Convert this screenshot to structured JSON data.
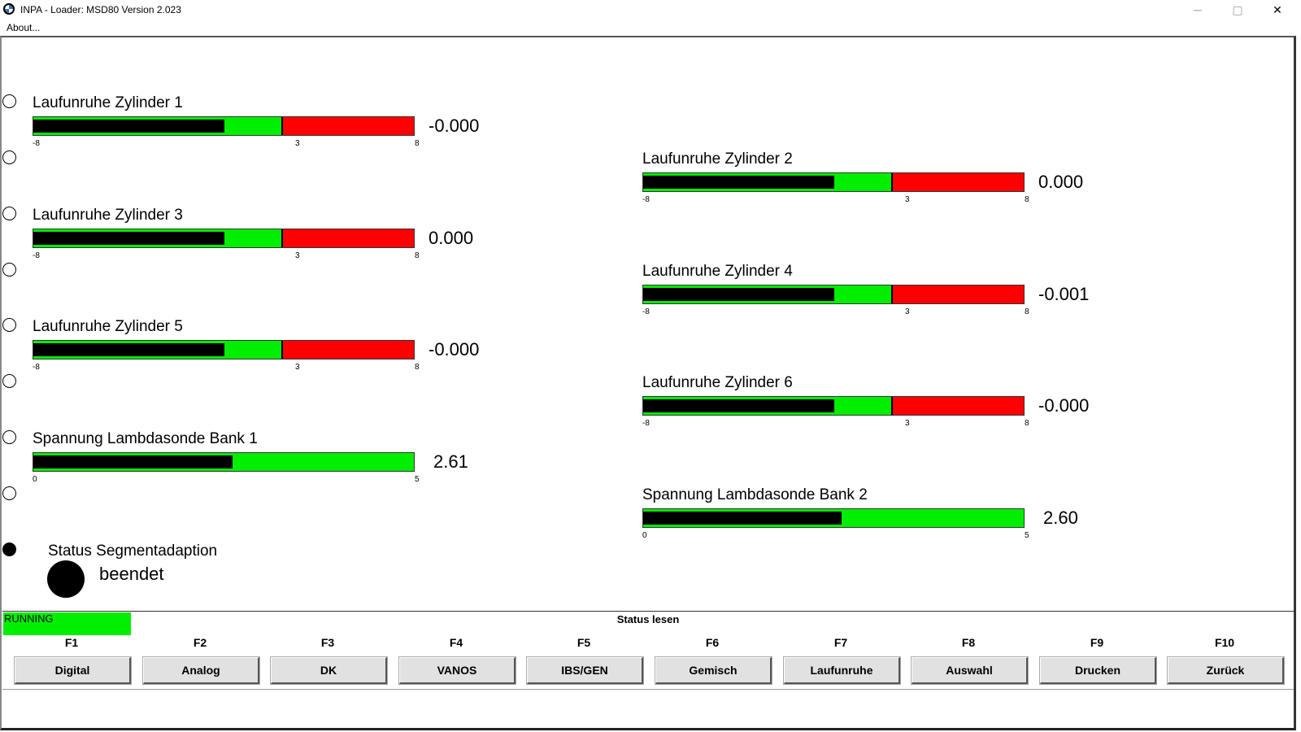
{
  "window": {
    "title": "INPA - Loader:  MSD80 Version 2.023",
    "minimize": "─",
    "maximize": "▢",
    "close": "✕"
  },
  "menu": {
    "about": "About..."
  },
  "measurements": [
    {
      "label": "Laufunruhe Zylinder 1",
      "value": "-0.000",
      "min": "-8",
      "mid": "3",
      "max": "8",
      "fill_fraction": 0.5
    },
    {
      "label": "Laufunruhe Zylinder 2",
      "value": "0.000",
      "min": "-8",
      "mid": "3",
      "max": "8",
      "fill_fraction": 0.5
    },
    {
      "label": "Laufunruhe Zylinder 3",
      "value": "0.000",
      "min": "-8",
      "mid": "3",
      "max": "8",
      "fill_fraction": 0.5
    },
    {
      "label": "Laufunruhe Zylinder 4",
      "value": "-0.001",
      "min": "-8",
      "mid": "3",
      "max": "8",
      "fill_fraction": 0.5
    },
    {
      "label": "Laufunruhe Zylinder 5",
      "value": "-0.000",
      "min": "-8",
      "mid": "3",
      "max": "8",
      "fill_fraction": 0.5
    },
    {
      "label": "Laufunruhe Zylinder 6",
      "value": "-0.000",
      "min": "-8",
      "mid": "3",
      "max": "8",
      "fill_fraction": 0.5
    },
    {
      "label": "Spannung Lambdasonde Bank 1",
      "value": "2.61",
      "min": "0",
      "max": "5",
      "fill_fraction": 0.522
    },
    {
      "label": "Spannung Lambdasonde Bank 2",
      "value": "2.60",
      "min": "0",
      "max": "5",
      "fill_fraction": 0.52
    }
  ],
  "status": {
    "label": "Status Segmentadaption",
    "value": "beendet"
  },
  "footer": {
    "running": "RUNNING",
    "title": "Status lesen",
    "keys": [
      {
        "key": "F1",
        "label": "Digital"
      },
      {
        "key": "F2",
        "label": "Analog"
      },
      {
        "key": "F3",
        "label": "DK"
      },
      {
        "key": "F4",
        "label": "VANOS"
      },
      {
        "key": "F5",
        "label": "IBS/GEN"
      },
      {
        "key": "F6",
        "label": "Gemisch"
      },
      {
        "key": "F7",
        "label": "Laufunruhe"
      },
      {
        "key": "F8",
        "label": "Auswahl"
      },
      {
        "key": "F9",
        "label": "Drucken"
      },
      {
        "key": "F10",
        "label": "Zurück"
      }
    ]
  },
  "colors": {
    "good": "#00ee00",
    "bad": "#ff0000",
    "needle": "#000000"
  }
}
